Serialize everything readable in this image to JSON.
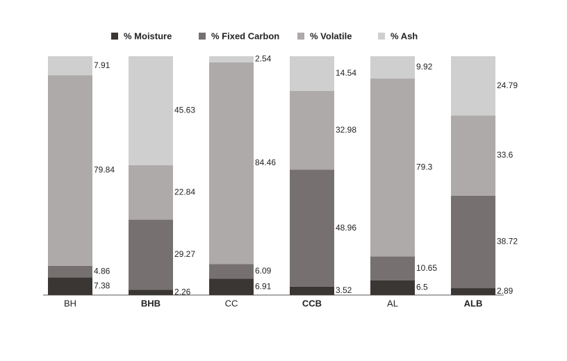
{
  "chart_data": {
    "type": "bar",
    "stacked": "percent",
    "categories": [
      "BH",
      "BHB",
      "CC",
      "CCB",
      "AL",
      "ALB"
    ],
    "category_bold": [
      false,
      true,
      false,
      true,
      false,
      true
    ],
    "series": [
      {
        "name": "% Moisture",
        "color": "#3a3634",
        "values": [
          7.38,
          2.26,
          6.91,
          3.52,
          6.5,
          2.89
        ]
      },
      {
        "name": "% Fixed Carbon",
        "color": "#767170",
        "values": [
          4.86,
          29.27,
          6.09,
          48.96,
          10.65,
          38.72
        ]
      },
      {
        "name": "% Volatile",
        "color": "#aeaaa9",
        "values": [
          79.84,
          22.84,
          84.46,
          32.98,
          79.3,
          33.6
        ]
      },
      {
        "name": "% Ash",
        "color": "#d0cfcf",
        "values": [
          7.91,
          45.63,
          2.54,
          14.54,
          9.92,
          24.79
        ]
      }
    ],
    "legend": "top"
  }
}
